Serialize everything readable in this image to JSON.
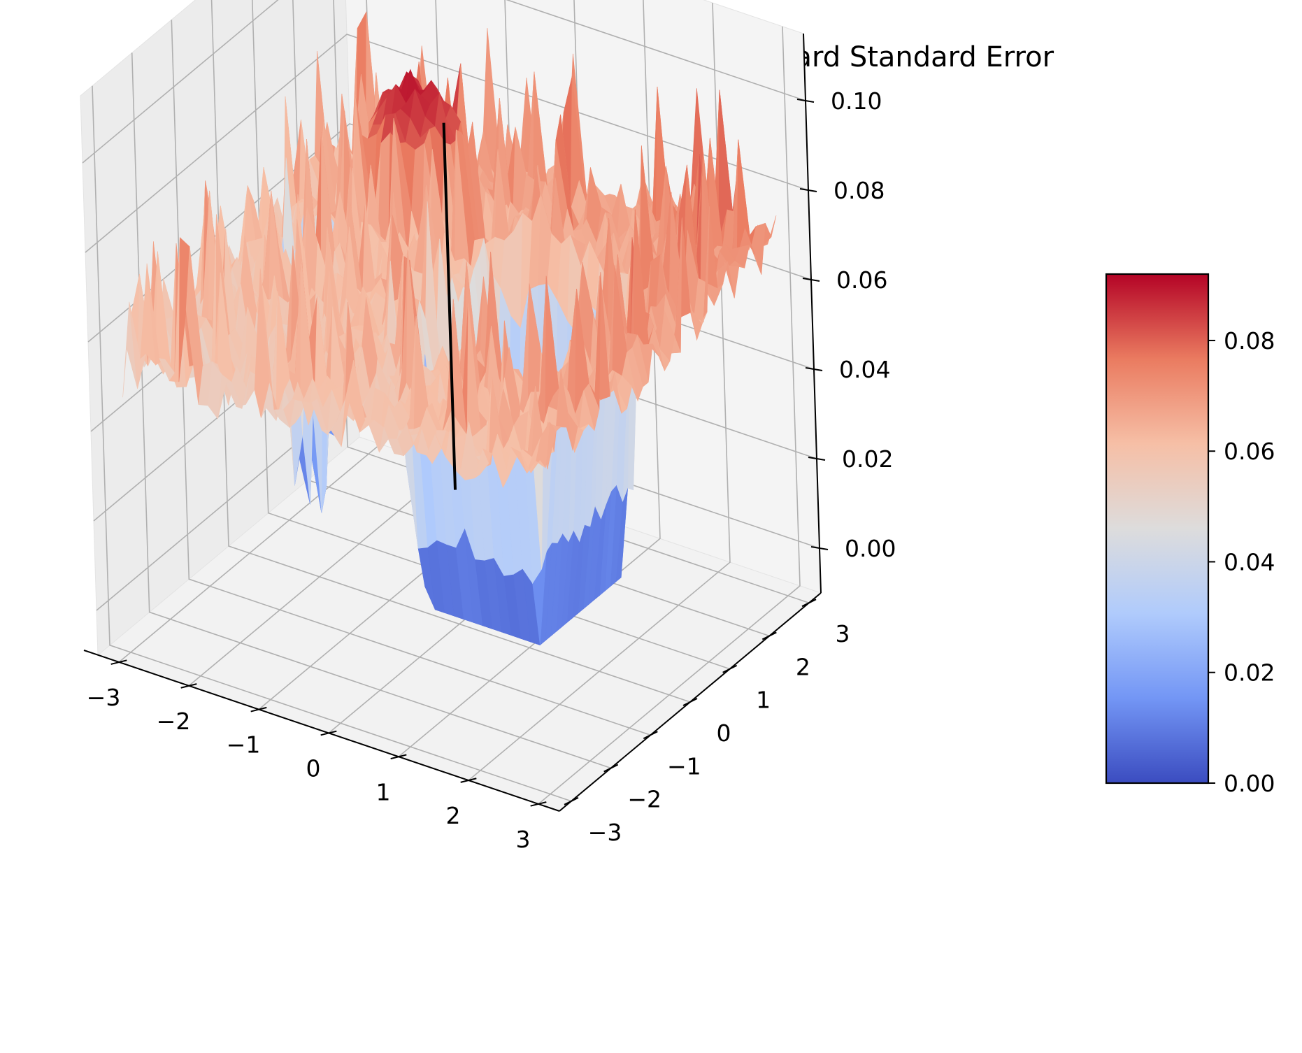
{
  "chart_data": {
    "type": "surface3d",
    "title": "Freeway-v0 | Atari | Sparse | Episodic Reward Standard Error",
    "xlabel": "",
    "ylabel": "",
    "zlabel": "",
    "xlim": [
      -3.3,
      3.3
    ],
    "ylim": [
      -3.3,
      3.3
    ],
    "zlim": [
      -0.01,
      0.115
    ],
    "x_ticks": [
      -3,
      -2,
      -1,
      0,
      1,
      2,
      3
    ],
    "y_ticks": [
      -3,
      -2,
      -1,
      0,
      1,
      2,
      3
    ],
    "z_ticks": [
      0.0,
      0.02,
      0.04,
      0.06,
      0.08,
      0.1
    ],
    "x_tick_labels": [
      "−3",
      "−2",
      "−1",
      "0",
      "1",
      "2",
      "3"
    ],
    "y_tick_labels": [
      "−3",
      "−2",
      "−1",
      "0",
      "1",
      "2",
      "3"
    ],
    "z_tick_labels": [
      "0.00",
      "0.02",
      "0.04",
      "0.06",
      "0.08",
      "0.10"
    ],
    "colormap": "coolwarm",
    "colormap_stops": [
      "#3b4cc0",
      "#7396f5",
      "#b0cbfc",
      "#dddcdc",
      "#f6bfa6",
      "#ea7b60",
      "#b40426"
    ],
    "colorbar": {
      "range": [
        0.0,
        0.092
      ],
      "ticks": [
        0.0,
        0.02,
        0.04,
        0.06,
        0.08
      ],
      "tick_labels": [
        "0.00",
        "0.02",
        "0.04",
        "0.06",
        "0.08"
      ]
    },
    "grid": true,
    "plateau_value": 0.062,
    "peak_value": 0.092,
    "valley_floor_value": 0.0,
    "valley_region": {
      "x": [
        -0.3,
        2.0
      ],
      "y": [
        -1.2,
        1.6
      ]
    },
    "vertical_marker": {
      "x": 0.0,
      "y": 0.0,
      "z": [
        0.0,
        0.102
      ]
    },
    "surface_samples": [
      {
        "x": -3.0,
        "y": -3.0,
        "z": 0.058
      },
      {
        "x": -3.0,
        "y": 0.0,
        "z": 0.062
      },
      {
        "x": -3.0,
        "y": 3.0,
        "z": 0.064
      },
      {
        "x": -1.5,
        "y": 1.8,
        "z": 0.09
      },
      {
        "x": 0.0,
        "y": 0.0,
        "z": 0.06
      },
      {
        "x": 0.5,
        "y": 0.5,
        "z": 0.0
      },
      {
        "x": 1.0,
        "y": 0.0,
        "z": 0.0
      },
      {
        "x": 3.0,
        "y": -3.0,
        "z": 0.052
      },
      {
        "x": 3.0,
        "y": 3.0,
        "z": 0.066
      }
    ]
  }
}
